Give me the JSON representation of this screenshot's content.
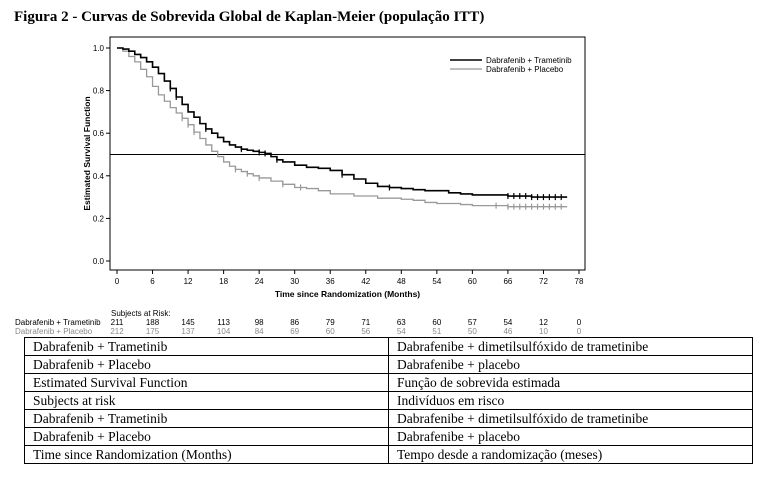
{
  "figure": {
    "title": "Figura 2 - Curvas de Sobrevida Global de Kaplan-Meier (população ITT)"
  },
  "chart_data": {
    "type": "line",
    "title": "",
    "xlabel": "Time since Randomization (Months)",
    "ylabel": "Estimated Survival Function",
    "xlim": [
      0,
      78
    ],
    "ylim": [
      0,
      1.0
    ],
    "x_ticks": [
      0,
      6,
      12,
      18,
      24,
      30,
      36,
      42,
      48,
      54,
      60,
      66,
      72,
      78
    ],
    "y_ticks": [
      0.0,
      0.2,
      0.4,
      0.6,
      0.8,
      1.0
    ],
    "reference_line_y": 0.5,
    "grid": false,
    "legend_position": "top-right",
    "series": [
      {
        "name": "Dabrafenib + Trametinib",
        "color": "#000000",
        "x": [
          0,
          1,
          2,
          3,
          4,
          5,
          6,
          7,
          8,
          9,
          10,
          11,
          12,
          13,
          14,
          15,
          16,
          17,
          18,
          19,
          20,
          21,
          22,
          23,
          24,
          25,
          26,
          27,
          28,
          30,
          32,
          34,
          36,
          38,
          40,
          42,
          44,
          46,
          48,
          50,
          52,
          54,
          56,
          58,
          60,
          62,
          64,
          66,
          68,
          70,
          72,
          74,
          76
        ],
        "y": [
          1.0,
          0.995,
          0.985,
          0.97,
          0.955,
          0.935,
          0.91,
          0.88,
          0.845,
          0.81,
          0.77,
          0.735,
          0.7,
          0.675,
          0.645,
          0.62,
          0.6,
          0.58,
          0.56,
          0.545,
          0.535,
          0.525,
          0.52,
          0.515,
          0.51,
          0.505,
          0.49,
          0.475,
          0.465,
          0.45,
          0.44,
          0.435,
          0.425,
          0.405,
          0.385,
          0.365,
          0.35,
          0.345,
          0.34,
          0.335,
          0.33,
          0.33,
          0.32,
          0.315,
          0.31,
          0.31,
          0.31,
          0.305,
          0.305,
          0.3,
          0.3,
          0.3,
          0.3
        ],
        "censor_x": [
          9,
          10,
          15,
          21,
          24,
          25,
          27,
          38,
          46,
          66,
          67,
          68,
          69,
          70,
          71,
          72,
          73,
          74,
          75
        ]
      },
      {
        "name": "Dabrafenib + Placebo",
        "color": "#999999",
        "x": [
          0,
          1,
          2,
          3,
          4,
          5,
          6,
          7,
          8,
          9,
          10,
          11,
          12,
          13,
          14,
          15,
          16,
          17,
          18,
          19,
          20,
          21,
          22,
          23,
          24,
          26,
          28,
          30,
          32,
          34,
          36,
          40,
          44,
          48,
          50,
          52,
          54,
          56,
          58,
          60,
          62,
          64,
          66,
          68,
          70,
          72,
          74,
          76
        ],
        "y": [
          1.0,
          0.985,
          0.96,
          0.935,
          0.9,
          0.865,
          0.82,
          0.78,
          0.75,
          0.72,
          0.695,
          0.67,
          0.64,
          0.605,
          0.575,
          0.545,
          0.515,
          0.49,
          0.465,
          0.445,
          0.43,
          0.42,
          0.41,
          0.4,
          0.39,
          0.375,
          0.36,
          0.345,
          0.34,
          0.33,
          0.315,
          0.305,
          0.295,
          0.29,
          0.285,
          0.275,
          0.27,
          0.27,
          0.265,
          0.26,
          0.26,
          0.26,
          0.255,
          0.255,
          0.255,
          0.255,
          0.255,
          0.255
        ],
        "censor_x": [
          11,
          12,
          13,
          20,
          22,
          24,
          28,
          31,
          64,
          66,
          67,
          68,
          69,
          70,
          71,
          72,
          73,
          74,
          75
        ]
      }
    ]
  },
  "risk_table": {
    "header": "Subjects at Risk:",
    "times": [
      0,
      6,
      12,
      18,
      24,
      30,
      36,
      42,
      48,
      54,
      60,
      66,
      72,
      78
    ],
    "rows": [
      {
        "label": "Dabrafenib + Trametinib",
        "counts": [
          "211",
          "188",
          "145",
          "113",
          "98",
          "86",
          "79",
          "71",
          "63",
          "60",
          "57",
          "54",
          "12",
          "0"
        ]
      },
      {
        "label": "Dabrafenib + Placebo",
        "counts": [
          "212",
          "175",
          "137",
          "104",
          "84",
          "69",
          "60",
          "56",
          "54",
          "51",
          "50",
          "46",
          "10",
          "0"
        ]
      }
    ]
  },
  "translation_table": [
    [
      "Dabrafenib + Trametinib",
      "Dabrafenibe + dimetilsulfóxido de trametinibe"
    ],
    [
      "Dabrafenib + Placebo",
      "Dabrafenibe + placebo"
    ],
    [
      "Estimated Survival Function",
      "Função de sobrevida estimada"
    ],
    [
      "Subjects at risk",
      "Indivíduos em risco"
    ],
    [
      "Dabrafenib + Trametinib",
      "Dabrafenibe + dimetilsulfóxido de trametinibe"
    ],
    [
      "Dabrafenib + Placebo",
      "Dabrafenibe + placebo"
    ],
    [
      "Time since Randomization (Months)",
      "Tempo desde a randomização (meses)"
    ]
  ]
}
